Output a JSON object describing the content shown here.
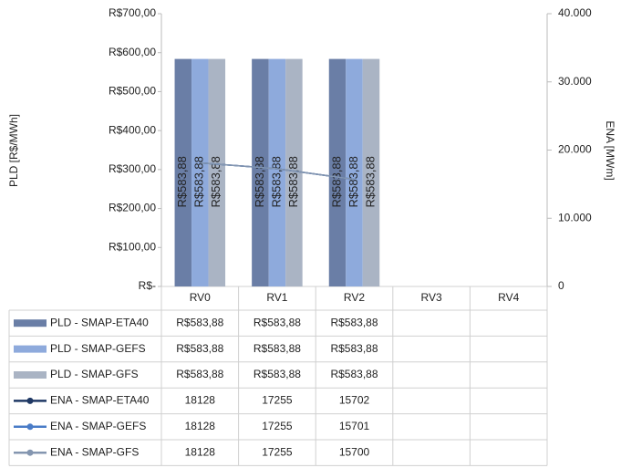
{
  "chart_data": {
    "type": "bar",
    "categories": [
      "RV0",
      "RV1",
      "RV2",
      "RV3",
      "RV4"
    ],
    "ylabel": "PLD [R$/MWh]",
    "y2label": "ENA [MWm]",
    "ylim": [
      0,
      700
    ],
    "yticks": [
      {
        "value": 0,
        "label": "R$-"
      },
      {
        "value": 100,
        "label": "R$100,00"
      },
      {
        "value": 200,
        "label": "R$200,00"
      },
      {
        "value": 300,
        "label": "R$300,00"
      },
      {
        "value": 400,
        "label": "R$400,00"
      },
      {
        "value": 500,
        "label": "R$500,00"
      },
      {
        "value": 600,
        "label": "R$600,00"
      },
      {
        "value": 700,
        "label": "R$700,00"
      }
    ],
    "y2lim": [
      0,
      40000
    ],
    "y2ticks": [
      0,
      {
        "value": 10000,
        "label": "10.000"
      },
      {
        "value": 20000,
        "label": "20.000"
      },
      {
        "value": 30000,
        "label": "30.000"
      },
      {
        "value": 40000,
        "label": "40.000"
      }
    ],
    "series": [
      {
        "name": "PLD - SMAP-ETA40",
        "type": "bar",
        "color": "#6a7ea6",
        "values": [
          583.88,
          583.88,
          583.88,
          null,
          null
        ],
        "value_labels": [
          "R$583,88",
          "R$583,88",
          "R$583,88",
          null,
          null
        ]
      },
      {
        "name": "PLD - SMAP-GEFS",
        "type": "bar",
        "color": "#8eaadc",
        "values": [
          583.88,
          583.88,
          583.88,
          null,
          null
        ],
        "value_labels": [
          "R$583,88",
          "R$583,88",
          "R$583,88",
          null,
          null
        ]
      },
      {
        "name": "PLD - SMAP-GFS",
        "type": "bar",
        "color": "#aab4c4",
        "values": [
          583.88,
          583.88,
          583.88,
          null,
          null
        ],
        "value_labels": [
          "R$583,88",
          "R$583,88",
          "R$583,88",
          null,
          null
        ]
      },
      {
        "name": "ENA - SMAP-ETA40",
        "type": "line",
        "axis": "y2",
        "color": "#1f3864",
        "values": [
          18128,
          17255,
          15702,
          null,
          null
        ]
      },
      {
        "name": "ENA - SMAP-GEFS",
        "type": "line",
        "axis": "y2",
        "color": "#4a7cc7",
        "values": [
          18128,
          17255,
          15701,
          null,
          null
        ]
      },
      {
        "name": "ENA - SMAP-GFS",
        "type": "line",
        "axis": "y2",
        "color": "#8496b0",
        "values": [
          18128,
          17255,
          15700,
          null,
          null
        ]
      }
    ]
  }
}
